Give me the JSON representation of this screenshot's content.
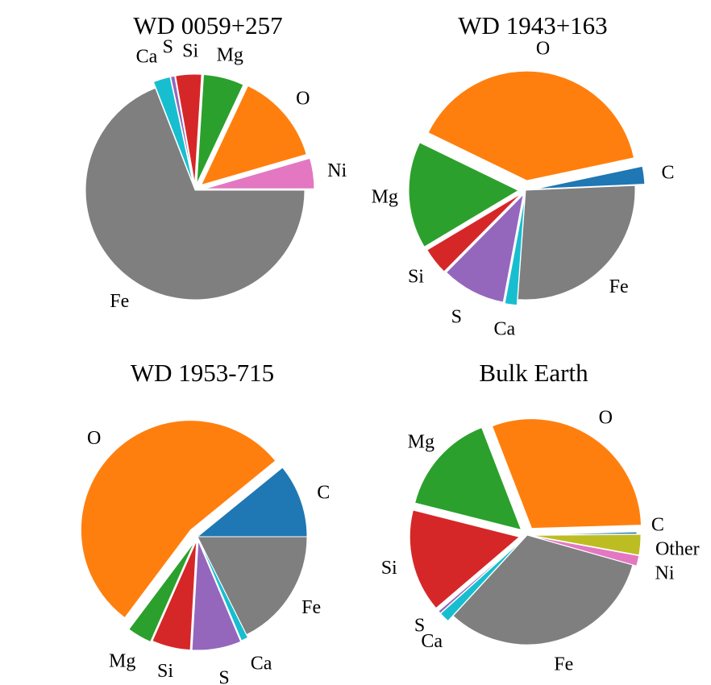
{
  "colors": {
    "C": "#1f77b4",
    "O": "#ff7f0e",
    "Mg": "#2ca02c",
    "Si": "#d62728",
    "S": "#9467bd",
    "Ca": "#17becf",
    "Fe": "#7f7f7f",
    "Ni": "#e377c2",
    "Other": "#bcbd22"
  },
  "chart_data": [
    {
      "type": "pie",
      "title": "WD 0059+257",
      "slices": [
        {
          "label": "Ni",
          "value": 4.5
        },
        {
          "label": "O",
          "value": 13.5
        },
        {
          "label": "Mg",
          "value": 6.0
        },
        {
          "label": "Si",
          "value": 3.8
        },
        {
          "label": "S",
          "value": 0.6
        },
        {
          "label": "Ca",
          "value": 2.5
        },
        {
          "label": "Fe",
          "value": 69.1
        }
      ]
    },
    {
      "type": "pie",
      "title": "WD 1943+163",
      "slices": [
        {
          "label": "C",
          "value": 2.5
        },
        {
          "label": "O",
          "value": 37.5
        },
        {
          "label": "Mg",
          "value": 15.0
        },
        {
          "label": "Si",
          "value": 3.8
        },
        {
          "label": "S",
          "value": 9.0
        },
        {
          "label": "Ca",
          "value": 1.7
        },
        {
          "label": "Fe",
          "value": 25.5
        }
      ]
    },
    {
      "type": "pie",
      "title": "WD 1953-715",
      "slices": [
        {
          "label": "C",
          "value": 10.5
        },
        {
          "label": "O",
          "value": 52.0
        },
        {
          "label": "Mg",
          "value": 3.5
        },
        {
          "label": "Si",
          "value": 5.5
        },
        {
          "label": "S",
          "value": 7.0
        },
        {
          "label": "Ca",
          "value": 1.0
        },
        {
          "label": "Fe",
          "value": 17.0
        }
      ]
    },
    {
      "type": "pie",
      "title": "Bulk Earth",
      "slices": [
        {
          "label": "C",
          "value": 0.3
        },
        {
          "label": "O",
          "value": 30.0
        },
        {
          "label": "Mg",
          "value": 15.0
        },
        {
          "label": "Si",
          "value": 15.0
        },
        {
          "label": "S",
          "value": 0.4
        },
        {
          "label": "Ca",
          "value": 1.5
        },
        {
          "label": "Fe",
          "value": 32.0
        },
        {
          "label": "Ni",
          "value": 1.5
        },
        {
          "label": "Other",
          "value": 3.0
        }
      ]
    }
  ]
}
